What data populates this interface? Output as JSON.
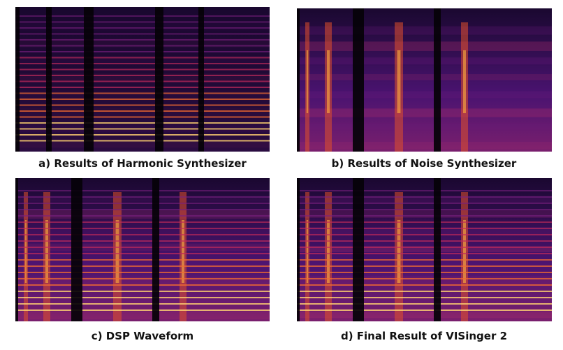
{
  "figure": {
    "panels": [
      {
        "caption": "a) Results of Harmonic Synthesizer"
      },
      {
        "caption": "b) Results of Noise Synthesizer"
      },
      {
        "caption": "c) DSP Waveform"
      },
      {
        "caption": "d) Final Result of VISinger 2"
      }
    ]
  }
}
